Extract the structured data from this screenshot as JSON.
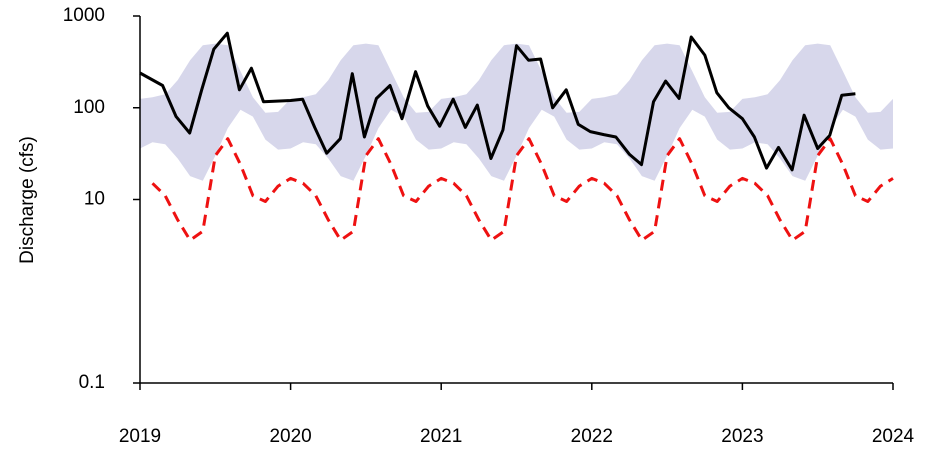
{
  "chart_data": {
    "type": "line",
    "y_label": "Discharge (cfs)",
    "xlim": [
      2019,
      2024
    ],
    "xticks": [
      2019,
      2020,
      2021,
      2022,
      2023,
      2024
    ],
    "ylim": [
      0.1,
      1000
    ],
    "yticks": [
      1000,
      100,
      10,
      0.1
    ],
    "y_log": true,
    "grid": false,
    "series": [
      {
        "style": "band",
        "color": "#d7d7eb",
        "x": [
          2019,
          2019.083,
          2019.167,
          2019.25,
          2019.333,
          2019.417,
          2019.5,
          2019.583,
          2019.667,
          2019.75,
          2019.833,
          2019.917,
          2020,
          2020.083,
          2020.167,
          2020.25,
          2020.333,
          2020.417,
          2020.5,
          2020.583,
          2020.667,
          2020.75,
          2020.833,
          2020.917,
          2021,
          2021.083,
          2021.167,
          2021.25,
          2021.333,
          2021.417,
          2021.5,
          2021.583,
          2021.667,
          2021.75,
          2021.833,
          2021.917,
          2022,
          2022.083,
          2022.167,
          2022.25,
          2022.333,
          2022.417,
          2022.5,
          2022.583,
          2022.667,
          2022.75,
          2022.833,
          2022.917,
          2023,
          2023.083,
          2023.167,
          2023.25,
          2023.333,
          2023.417,
          2023.5,
          2023.583,
          2023.667,
          2023.75,
          2023.833,
          2023.917,
          2024
        ],
        "values": [
          125,
          130,
          140,
          200,
          330,
          480,
          500,
          480,
          250,
          130,
          88,
          90,
          125,
          130,
          140,
          200,
          330,
          480,
          500,
          480,
          250,
          130,
          88,
          90,
          125,
          130,
          140,
          200,
          330,
          480,
          500,
          480,
          250,
          130,
          88,
          90,
          125,
          130,
          140,
          200,
          330,
          480,
          500,
          480,
          250,
          130,
          88,
          90,
          125,
          130,
          140,
          200,
          330,
          480,
          500,
          480,
          250,
          130,
          88,
          90,
          125
        ],
        "lower": [
          36,
          42,
          40,
          28,
          18,
          16,
          30,
          60,
          95,
          80,
          45,
          35,
          36,
          42,
          40,
          28,
          18,
          16,
          30,
          60,
          95,
          80,
          45,
          35,
          36,
          42,
          40,
          28,
          18,
          16,
          30,
          60,
          95,
          80,
          45,
          35,
          36,
          42,
          40,
          28,
          18,
          16,
          30,
          60,
          95,
          80,
          45,
          35,
          36,
          42,
          40,
          28,
          18,
          16,
          30,
          60,
          95,
          80,
          45,
          35,
          36
        ]
      },
      {
        "style": "dashed",
        "color": "#ee1111",
        "x": [
          2019.083,
          2019.167,
          2019.25,
          2019.333,
          2019.417,
          2019.5,
          2019.583,
          2019.667,
          2019.75,
          2019.833,
          2019.917,
          2020,
          2020.083,
          2020.167,
          2020.25,
          2020.333,
          2020.417,
          2020.5,
          2020.583,
          2020.667,
          2020.75,
          2020.833,
          2020.917,
          2021,
          2021.083,
          2021.167,
          2021.25,
          2021.333,
          2021.417,
          2021.5,
          2021.583,
          2021.667,
          2021.75,
          2021.833,
          2021.917,
          2022,
          2022.083,
          2022.167,
          2022.25,
          2022.333,
          2022.417,
          2022.5,
          2022.583,
          2022.667,
          2022.75,
          2022.833,
          2022.917,
          2023,
          2023.083,
          2023.167,
          2023.25,
          2023.333,
          2023.417,
          2023.5,
          2023.583,
          2023.667,
          2023.75,
          2023.833,
          2023.917,
          2024
        ],
        "values": [
          15,
          11,
          6,
          3.6,
          4.5,
          30,
          46,
          24,
          11,
          9.5,
          14,
          17,
          15,
          11,
          6,
          3.6,
          4.5,
          30,
          46,
          24,
          11,
          9.5,
          14,
          17,
          15,
          11,
          6,
          3.6,
          4.5,
          30,
          46,
          24,
          11,
          9.5,
          14,
          17,
          15,
          11,
          6,
          3.6,
          4.5,
          30,
          46,
          24,
          11,
          9.5,
          14,
          17,
          15,
          11,
          6,
          3.6,
          4.5,
          30,
          46,
          24,
          11,
          9.5,
          14,
          17
        ]
      },
      {
        "style": "solid",
        "color": "#000000",
        "x": [
          2019.0,
          2019.15,
          2019.24,
          2019.33,
          2019.41,
          2019.49,
          2019.58,
          2019.66,
          2019.74,
          2019.82,
          2020.0,
          2020.08,
          2020.16,
          2020.24,
          2020.33,
          2020.41,
          2020.49,
          2020.57,
          2020.66,
          2020.74,
          2020.83,
          2020.91,
          2020.99,
          2021.08,
          2021.16,
          2021.24,
          2021.33,
          2021.41,
          2021.5,
          2021.58,
          2021.66,
          2021.74,
          2021.83,
          2021.91,
          2021.99,
          2022.08,
          2022.16,
          2022.25,
          2022.33,
          2022.41,
          2022.49,
          2022.58,
          2022.66,
          2022.75,
          2022.83,
          2022.91,
          2023.0,
          2023.08,
          2023.16,
          2023.24,
          2023.33,
          2023.41,
          2023.5,
          2023.58,
          2023.66,
          2023.75
        ],
        "values": [
          239,
          175,
          80,
          53,
          157,
          435,
          650,
          157,
          270,
          116,
          120,
          124,
          61,
          32,
          46,
          235,
          48,
          126,
          175,
          76,
          247,
          105,
          63,
          124,
          61,
          107,
          28,
          57,
          475,
          330,
          340,
          100,
          157,
          66,
          55,
          51,
          48,
          31,
          24,
          116,
          195,
          126,
          590,
          375,
          146,
          100,
          76,
          48,
          22,
          37,
          21,
          83,
          36,
          50,
          137,
          142
        ]
      }
    ]
  }
}
